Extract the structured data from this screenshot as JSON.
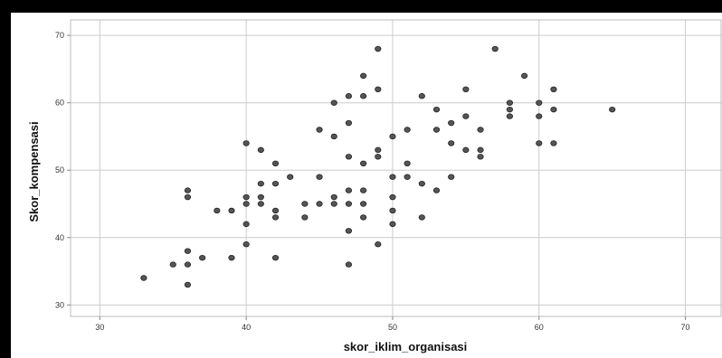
{
  "chart_data": {
    "type": "scatter",
    "xlabel": "skor_iklim_organisasi",
    "ylabel": "Skor_kompensasi",
    "xlim": [
      28,
      72.5
    ],
    "ylim": [
      28.3,
      72.3
    ],
    "xticks": [
      30,
      40,
      50,
      60,
      70
    ],
    "yticks": [
      30,
      40,
      50,
      60,
      70
    ],
    "grid": true,
    "point_color": "#555555",
    "point_edge_color": "#222222",
    "grid_color": "#cccccc",
    "points": [
      {
        "x": 33,
        "y": 34
      },
      {
        "x": 35,
        "y": 36
      },
      {
        "x": 36,
        "y": 47
      },
      {
        "x": 36,
        "y": 46
      },
      {
        "x": 36,
        "y": 38
      },
      {
        "x": 36,
        "y": 36
      },
      {
        "x": 36,
        "y": 33
      },
      {
        "x": 37,
        "y": 37
      },
      {
        "x": 38,
        "y": 44
      },
      {
        "x": 39,
        "y": 44
      },
      {
        "x": 39,
        "y": 37
      },
      {
        "x": 40,
        "y": 54
      },
      {
        "x": 40,
        "y": 46
      },
      {
        "x": 40,
        "y": 45
      },
      {
        "x": 40,
        "y": 42
      },
      {
        "x": 40,
        "y": 39
      },
      {
        "x": 41,
        "y": 53
      },
      {
        "x": 41,
        "y": 48
      },
      {
        "x": 41,
        "y": 46
      },
      {
        "x": 41,
        "y": 45
      },
      {
        "x": 42,
        "y": 51
      },
      {
        "x": 42,
        "y": 48
      },
      {
        "x": 42,
        "y": 44
      },
      {
        "x": 42,
        "y": 43
      },
      {
        "x": 42,
        "y": 37
      },
      {
        "x": 43,
        "y": 49
      },
      {
        "x": 44,
        "y": 45
      },
      {
        "x": 44,
        "y": 43
      },
      {
        "x": 45,
        "y": 56
      },
      {
        "x": 45,
        "y": 49
      },
      {
        "x": 45,
        "y": 45
      },
      {
        "x": 46,
        "y": 60
      },
      {
        "x": 46,
        "y": 55
      },
      {
        "x": 46,
        "y": 46
      },
      {
        "x": 46,
        "y": 45
      },
      {
        "x": 47,
        "y": 61
      },
      {
        "x": 47,
        "y": 57
      },
      {
        "x": 47,
        "y": 52
      },
      {
        "x": 47,
        "y": 47
      },
      {
        "x": 47,
        "y": 45
      },
      {
        "x": 47,
        "y": 41
      },
      {
        "x": 47,
        "y": 36
      },
      {
        "x": 48,
        "y": 64
      },
      {
        "x": 48,
        "y": 61
      },
      {
        "x": 48,
        "y": 51
      },
      {
        "x": 48,
        "y": 47
      },
      {
        "x": 48,
        "y": 45
      },
      {
        "x": 48,
        "y": 43
      },
      {
        "x": 49,
        "y": 68
      },
      {
        "x": 49,
        "y": 62
      },
      {
        "x": 49,
        "y": 53
      },
      {
        "x": 49,
        "y": 52
      },
      {
        "x": 49,
        "y": 39
      },
      {
        "x": 50,
        "y": 55
      },
      {
        "x": 50,
        "y": 49
      },
      {
        "x": 50,
        "y": 46
      },
      {
        "x": 50,
        "y": 44
      },
      {
        "x": 50,
        "y": 42
      },
      {
        "x": 51,
        "y": 56
      },
      {
        "x": 51,
        "y": 51
      },
      {
        "x": 51,
        "y": 49
      },
      {
        "x": 52,
        "y": 61
      },
      {
        "x": 52,
        "y": 48
      },
      {
        "x": 52,
        "y": 43
      },
      {
        "x": 53,
        "y": 59
      },
      {
        "x": 53,
        "y": 56
      },
      {
        "x": 53,
        "y": 47
      },
      {
        "x": 54,
        "y": 57
      },
      {
        "x": 54,
        "y": 54
      },
      {
        "x": 54,
        "y": 49
      },
      {
        "x": 55,
        "y": 62
      },
      {
        "x": 55,
        "y": 58
      },
      {
        "x": 55,
        "y": 53
      },
      {
        "x": 56,
        "y": 56
      },
      {
        "x": 56,
        "y": 53
      },
      {
        "x": 56,
        "y": 52
      },
      {
        "x": 57,
        "y": 68
      },
      {
        "x": 58,
        "y": 60
      },
      {
        "x": 58,
        "y": 59
      },
      {
        "x": 58,
        "y": 58
      },
      {
        "x": 59,
        "y": 64
      },
      {
        "x": 60,
        "y": 60
      },
      {
        "x": 60,
        "y": 58
      },
      {
        "x": 60,
        "y": 54
      },
      {
        "x": 61,
        "y": 62
      },
      {
        "x": 61,
        "y": 59
      },
      {
        "x": 61,
        "y": 54
      },
      {
        "x": 65,
        "y": 59
      }
    ]
  }
}
